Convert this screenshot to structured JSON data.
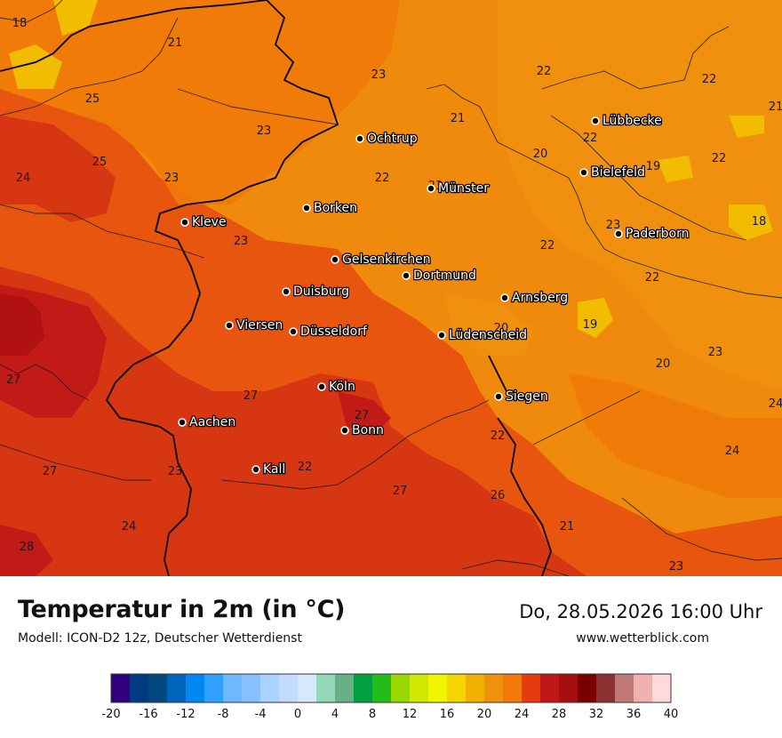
{
  "map": {
    "colors": {
      "c18": "#f2c100",
      "c20": "#f0900f",
      "c22": "#f07a0a",
      "c24": "#e6500f",
      "c26": "#d63414",
      "c28": "#c01818",
      "c30": "#b01010",
      "border_country": "#000000",
      "border_region": "#1a1a1a"
    },
    "cities": [
      {
        "name": "Lübbecke"
      },
      {
        "name": "Ochtrup"
      },
      {
        "name": "Bielefeld"
      },
      {
        "name": "Münster"
      },
      {
        "name": "Borken"
      },
      {
        "name": "Kleve"
      },
      {
        "name": "Paderborn"
      },
      {
        "name": "Gelsenkirchen"
      },
      {
        "name": "Dortmund"
      },
      {
        "name": "Duisburg"
      },
      {
        "name": "Arnsberg"
      },
      {
        "name": "Viersen"
      },
      {
        "name": "Düsseldorf"
      },
      {
        "name": "Lüdenscheid"
      },
      {
        "name": "Köln"
      },
      {
        "name": "Siegen"
      },
      {
        "name": "Aachen"
      },
      {
        "name": "Bonn"
      },
      {
        "name": "Kall"
      }
    ],
    "values": [
      "18",
      "21",
      "23",
      "22",
      "22",
      "25",
      "23",
      "21",
      "22",
      "25",
      "23",
      "20",
      "19",
      "22",
      "24",
      "23",
      "22",
      "23",
      "18",
      "23",
      "22",
      "22",
      "20",
      "19",
      "20",
      "23",
      "27",
      "27",
      "24",
      "27",
      "22",
      "27",
      "23",
      "22",
      "24",
      "27",
      "26",
      "21",
      "24",
      "28",
      "23",
      "21"
    ]
  },
  "footer": {
    "title": "Temperatur in 2m (in °C)",
    "model": "Modell: ICON-D2 12z, Deutscher Wetterdienst",
    "datetime": "Do, 28.05.2026 16:00 Uhr",
    "website": "www.wetterblick.com"
  },
  "legend": {
    "colors": [
      "#32007e",
      "#003a80",
      "#00487e",
      "#0064bd",
      "#0087f0",
      "#2ea0ff",
      "#6eb8ff",
      "#88c0ff",
      "#a8d2ff",
      "#c2dcff",
      "#d8e8fc",
      "#92d8b8",
      "#68b088",
      "#00a040",
      "#24bc18",
      "#98d800",
      "#d0e800",
      "#f2f500",
      "#f5d500",
      "#f0b000",
      "#f0900f",
      "#f07a0a",
      "#e63a0f",
      "#c01818",
      "#a50f0f",
      "#7a0000",
      "#8a3232",
      "#c07878",
      "#f0b0b0",
      "#ffdada"
    ],
    "ticks": [
      "-20",
      "-16",
      "-12",
      "-8",
      "-4",
      "0",
      "4",
      "8",
      "12",
      "16",
      "20",
      "24",
      "28",
      "32",
      "36",
      "40"
    ]
  }
}
